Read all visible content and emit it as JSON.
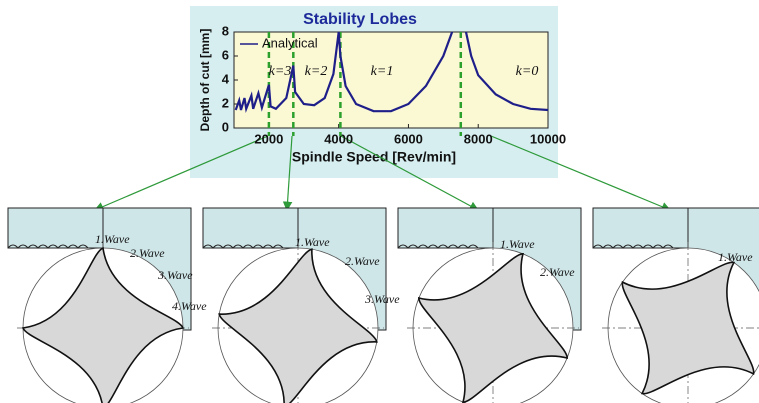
{
  "chart_data": {
    "type": "line",
    "title": "Stability Lobes",
    "x_label": "Spindle Speed [Rev/min]",
    "y_label": "Depth of cut [mm]",
    "x": [
      1050,
      1150,
      1200,
      1300,
      1350,
      1500,
      1550,
      1700,
      1800,
      2000,
      2050,
      2200,
      2500,
      2700,
      2750,
      3000,
      3300,
      3600,
      3850,
      4000,
      4050,
      4200,
      4500,
      5000,
      5500,
      6000,
      6500,
      7000,
      7250,
      7450,
      7650,
      7800,
      8000,
      8500,
      9000,
      9500,
      10000
    ],
    "series": [
      {
        "name": "Analytical",
        "color": "#1f1f8a",
        "values": [
          1.5,
          2.3,
          1.5,
          2.5,
          1.6,
          2.7,
          1.6,
          2.9,
          1.7,
          3.6,
          1.8,
          1.6,
          2.5,
          5.2,
          3.0,
          2.0,
          1.9,
          2.5,
          4.5,
          8.0,
          6.0,
          3.5,
          2.0,
          1.4,
          1.4,
          2.0,
          3.5,
          6.0,
          8.0,
          null,
          8.0,
          6.0,
          4.4,
          2.8,
          2.0,
          1.6,
          1.5
        ]
      }
    ],
    "xlim": [
      1000,
      10000
    ],
    "ylim": [
      0,
      8
    ],
    "xticks": [
      2000,
      4000,
      6000,
      8000,
      10000
    ],
    "yticks": [
      0,
      2,
      4,
      6,
      8
    ],
    "vlines": [
      2000,
      2700,
      4050,
      7500
    ],
    "vline_color": "#2ca02c",
    "annotations": [
      "k=3",
      "k=2",
      "k=1",
      "k=0"
    ]
  },
  "panels": [
    {
      "labels": [
        "1.Wave",
        "2.Wave",
        "3.Wave",
        "4.Wave"
      ]
    },
    {
      "labels": [
        "1.Wave",
        "2.Wave",
        "3.Wave"
      ]
    },
    {
      "labels": [
        "1.Wave",
        "2.Wave"
      ]
    },
    {
      "labels": [
        "1.Wave"
      ]
    }
  ]
}
